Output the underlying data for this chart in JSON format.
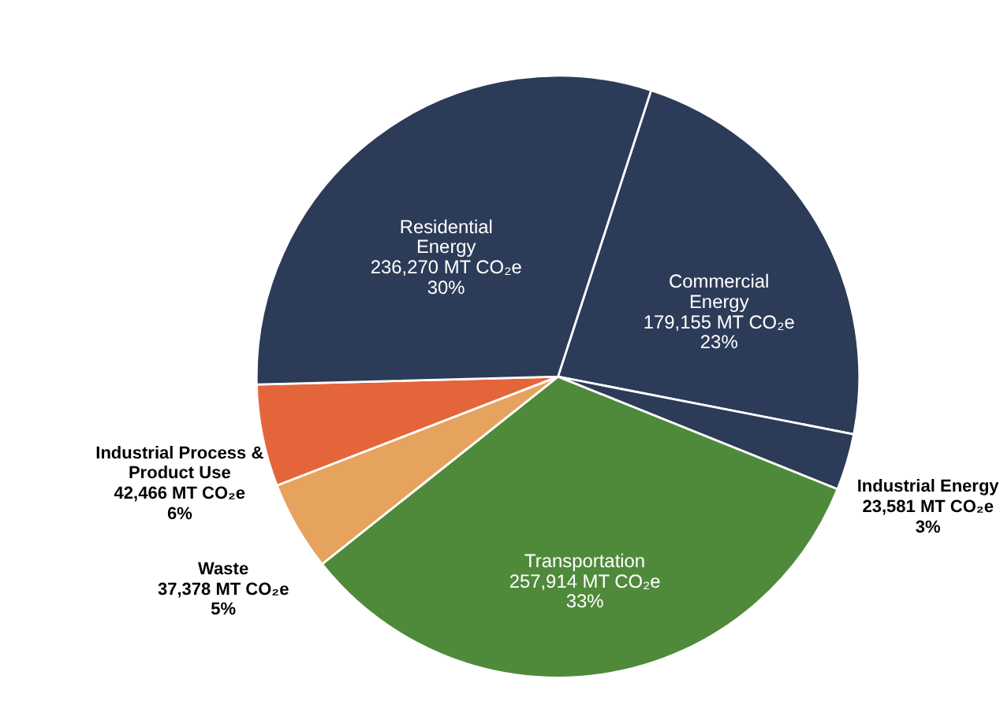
{
  "chart_data": {
    "type": "pie",
    "categories": [
      "Commercial Energy",
      "Industrial Energy",
      "Transportation",
      "Waste",
      "Industrial Process & Product Use",
      "Residential Energy"
    ],
    "values": [
      179155,
      23581,
      257914,
      37378,
      42466,
      236270
    ],
    "colors": [
      "#2c3b57",
      "#2c3b57",
      "#4f8a3b",
      "#e6a35e",
      "#e5653a",
      "#2c3b57"
    ],
    "value_labels": [
      "179,155 MT CO₂e\n23%",
      "23,581 MT CO₂e\n3%",
      "257,914 MT CO₂e\n33%",
      "37,378 MT CO₂e\n5%",
      "42,466 MT CO₂e\n6%",
      "236,270 MT CO₂e\n30%"
    ]
  }
}
